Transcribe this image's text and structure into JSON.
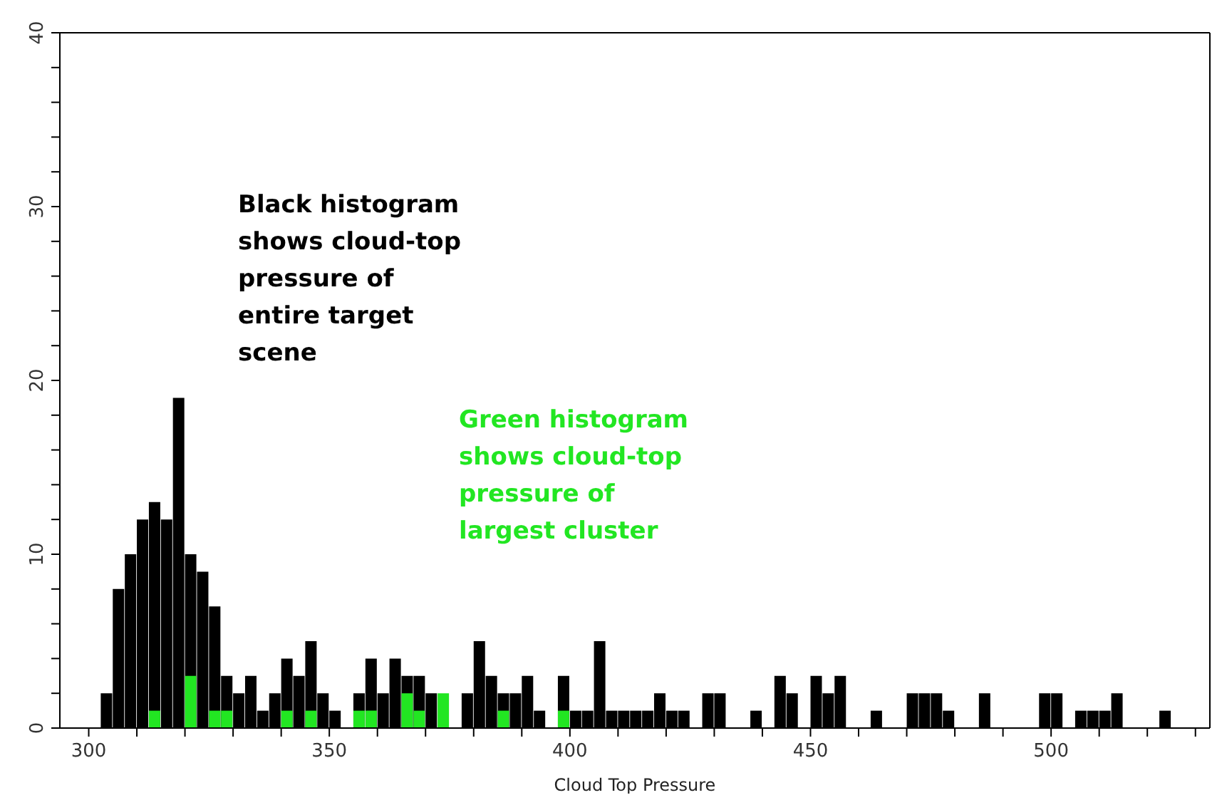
{
  "chart_data": {
    "type": "histogram",
    "xlabel": "Cloud Top Pressure",
    "bins": [
      302.5,
      305,
      307.5,
      310,
      312.5,
      315,
      317.5,
      320,
      322.5,
      325,
      327.5,
      330,
      332.5,
      335,
      337.5,
      340,
      342.5,
      345,
      347.5,
      350,
      352.5,
      355,
      357.5,
      360,
      362.5,
      365,
      367.5,
      370,
      372.5,
      375,
      377.5,
      380,
      382.5,
      385,
      387.5,
      390,
      392.5,
      395,
      397.5,
      400,
      402.5,
      405,
      407.5,
      410,
      412.5,
      415,
      417.5,
      420,
      422.5,
      425,
      427.5,
      430,
      432.5,
      435,
      437.5,
      440,
      442.5,
      445,
      447.5,
      450,
      452.5,
      455,
      457.5,
      460,
      462.5,
      465,
      467.5,
      470,
      472.5,
      475,
      477.5,
      480,
      482.5,
      485,
      487.5,
      490,
      492.5,
      495,
      497.5,
      500,
      502.5,
      505,
      507.5,
      510,
      512.5,
      515,
      517.5,
      520,
      522.5,
      525
    ],
    "series": [
      {
        "color": "#000000",
        "values": [
          2,
          8,
          10,
          12,
          13,
          12,
          19,
          10,
          9,
          7,
          3,
          2,
          3,
          1,
          2,
          4,
          3,
          5,
          2,
          1,
          0,
          2,
          4,
          2,
          4,
          3,
          3,
          2,
          null,
          0,
          2,
          5,
          3,
          2,
          2,
          3,
          1,
          0,
          3,
          1,
          1,
          5,
          1,
          1,
          1,
          1,
          2,
          1,
          1,
          0,
          2,
          2,
          0,
          0,
          1,
          0,
          3,
          2,
          0,
          3,
          2,
          3,
          0,
          0,
          1,
          0,
          0,
          2,
          2,
          2,
          1,
          0,
          0,
          2,
          0,
          0,
          0,
          0,
          2,
          2,
          0,
          1,
          1,
          1,
          2,
          0,
          0,
          0,
          1
        ]
      },
      {
        "color": "#22e622",
        "values": [
          0,
          0,
          0,
          0,
          1,
          0,
          0,
          3,
          0,
          1,
          1,
          0,
          0,
          0,
          0,
          1,
          0,
          1,
          0,
          0,
          0,
          1,
          1,
          0,
          0,
          2,
          1,
          0,
          2,
          0,
          0,
          0,
          0,
          1,
          0,
          0,
          0,
          0,
          1,
          0,
          0,
          0,
          0,
          0,
          0,
          0,
          0,
          0,
          0,
          0,
          0,
          0,
          0,
          0,
          0,
          0,
          0,
          0,
          0,
          0,
          0,
          0,
          0,
          0,
          0,
          0,
          0,
          0,
          0,
          0,
          0,
          0,
          0,
          0,
          0,
          0,
          0,
          0,
          0,
          0,
          0,
          0,
          0,
          0,
          0,
          0,
          0,
          0,
          0
        ]
      }
    ],
    "xlim": [
      294,
      533
    ],
    "xticks": [
      300,
      {
        "value": 310,
        "label": null
      },
      {
        "value": 320,
        "label": null
      },
      {
        "value": 330,
        "label": null
      },
      {
        "value": 340,
        "label": null
      },
      350,
      {
        "value": 360,
        "label": null
      },
      {
        "value": 370,
        "label": null
      },
      {
        "value": 380,
        "label": null
      },
      {
        "value": 390,
        "label": null
      },
      400,
      {
        "value": 410,
        "label": null
      },
      {
        "value": 420,
        "label": null
      },
      {
        "value": 430,
        "label": null
      },
      {
        "value": 440,
        "label": null
      },
      450,
      {
        "value": 460,
        "label": null
      },
      {
        "value": 470,
        "label": null
      },
      {
        "value": 480,
        "label": null
      },
      {
        "value": 490,
        "label": null
      },
      500,
      {
        "value": 510,
        "label": null
      },
      {
        "value": 520,
        "label": null
      },
      {
        "value": 530,
        "label": null
      }
    ],
    "ylim": [
      0,
      40
    ],
    "yticks": [
      0,
      {
        "value": 2,
        "label": null
      },
      {
        "value": 4,
        "label": null
      },
      {
        "value": 6,
        "label": null
      },
      {
        "value": 8,
        "label": null
      },
      10,
      {
        "value": 12,
        "label": null
      },
      {
        "value": 14,
        "label": null
      },
      {
        "value": 16,
        "label": null
      },
      {
        "value": 18,
        "label": null
      },
      20,
      {
        "value": 22,
        "label": null
      },
      {
        "value": 24,
        "label": null
      },
      {
        "value": 26,
        "label": null
      },
      {
        "value": 28,
        "label": null
      },
      30,
      {
        "value": 32,
        "label": null
      },
      {
        "value": 34,
        "label": null
      },
      {
        "value": 36,
        "label": null
      },
      {
        "value": 38,
        "label": null
      },
      40
    ],
    "annotations": [
      "Black histogram shows cloud-top pressure of entire target scene",
      "Green histogram shows cloud-top pressure of largest cluster"
    ]
  }
}
